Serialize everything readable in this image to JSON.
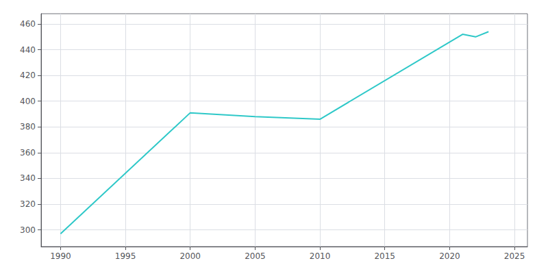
{
  "chart_data": {
    "type": "line",
    "x": [
      1990,
      2000,
      2005,
      2010,
      2020,
      2021,
      2022,
      2023
    ],
    "values": [
      297,
      391,
      388,
      386,
      446,
      452,
      450,
      454
    ],
    "color": "#2ec8c8",
    "xlim": [
      1988.5,
      2026
    ],
    "ylim": [
      287,
      468
    ],
    "xticks": [
      1990,
      1995,
      2000,
      2005,
      2010,
      2015,
      2020,
      2025
    ],
    "yticks": [
      300,
      320,
      340,
      360,
      380,
      400,
      420,
      440,
      460
    ],
    "grid": true
  }
}
